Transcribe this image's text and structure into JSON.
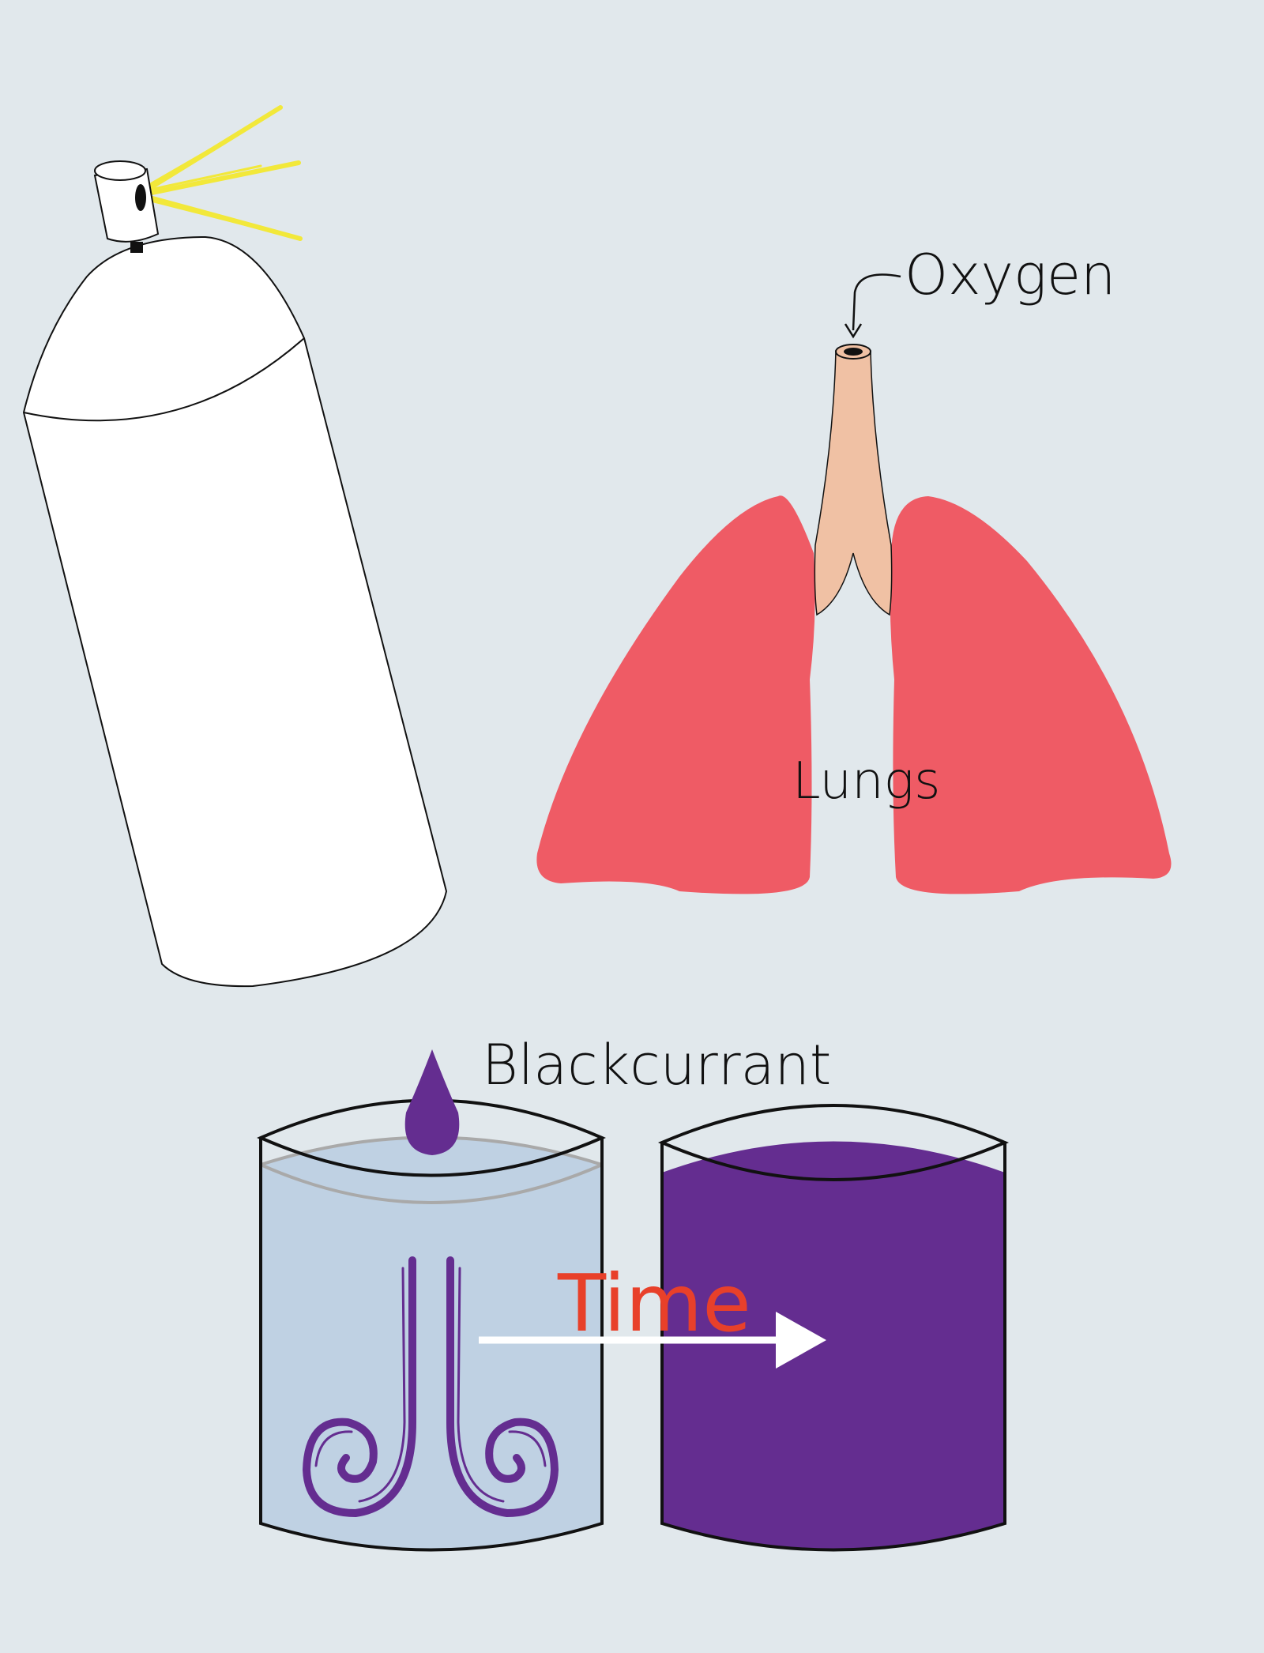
{
  "labels": {
    "oxygen": "Oxygen",
    "lungs": "Lungs",
    "blackcurrant": "Blackcurrant",
    "time": "Time"
  },
  "colors": {
    "background": "#e1e8ec",
    "spray": "#f2e83a",
    "lungs": "#ef5b65",
    "trachea": "#f0c1a4",
    "water": "#bfd1e3",
    "blackcurrant": "#642d90",
    "time_text": "#e8402a",
    "arrow": "#ffffff"
  }
}
